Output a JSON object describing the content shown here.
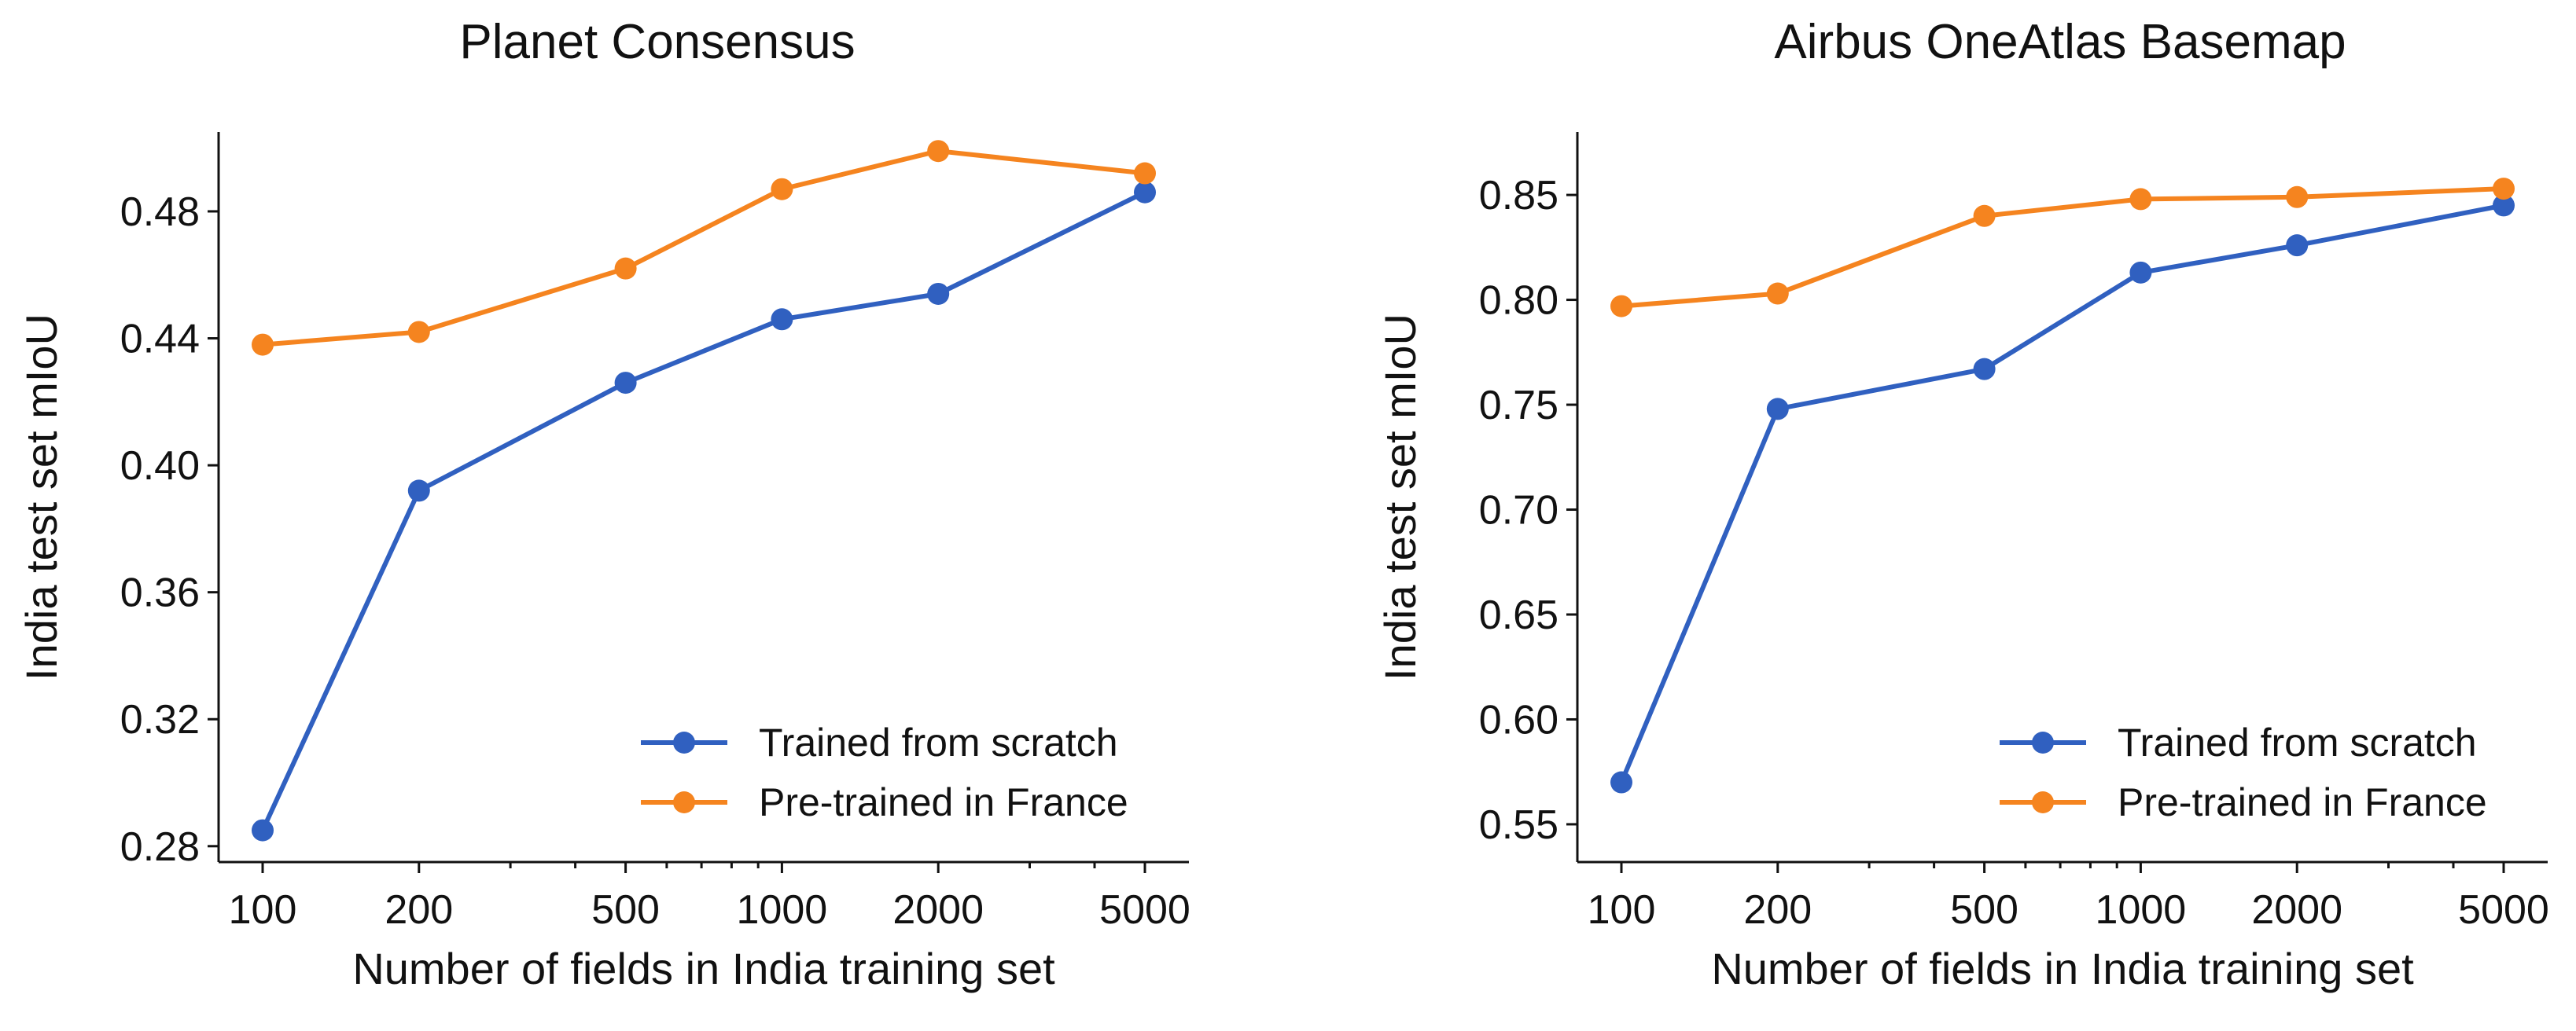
{
  "chart_data": [
    {
      "type": "line",
      "title": "Planet Consensus",
      "xlabel": "Number of fields in India training set",
      "ylabel": "India test set mIoU",
      "xscale": "log",
      "x": [
        100,
        200,
        500,
        1000,
        2000,
        5000
      ],
      "xticks": [
        "100",
        "200",
        "500",
        "1000",
        "2000",
        "5000"
      ],
      "yticks": [
        "0.28",
        "0.32",
        "0.36",
        "0.40",
        "0.44",
        "0.48"
      ],
      "ylim": [
        0.275,
        0.505
      ],
      "legend_position": "lower-right",
      "series": [
        {
          "name": "Trained from scratch",
          "color": "#3060c0",
          "values": [
            0.285,
            0.392,
            0.426,
            0.446,
            0.454,
            0.486
          ]
        },
        {
          "name": "Pre-trained in France",
          "color": "#f5841f",
          "values": [
            0.438,
            0.442,
            0.462,
            0.487,
            0.499,
            0.492
          ]
        }
      ]
    },
    {
      "type": "line",
      "title": "Airbus OneAtlas Basemap",
      "xlabel": "Number of fields in India training set",
      "ylabel": "India test set mIoU",
      "xscale": "log",
      "x": [
        100,
        200,
        500,
        1000,
        2000,
        5000
      ],
      "xticks": [
        "100",
        "200",
        "500",
        "1000",
        "2000",
        "5000"
      ],
      "yticks": [
        "0.55",
        "0.60",
        "0.65",
        "0.70",
        "0.75",
        "0.80",
        "0.85"
      ],
      "ylim": [
        0.532,
        0.88
      ],
      "legend_position": "lower-right",
      "series": [
        {
          "name": "Trained from scratch",
          "color": "#3060c0",
          "values": [
            0.57,
            0.748,
            0.767,
            0.813,
            0.826,
            0.845
          ]
        },
        {
          "name": "Pre-trained in France",
          "color": "#f5841f",
          "values": [
            0.797,
            0.803,
            0.84,
            0.848,
            0.849,
            0.853
          ]
        }
      ]
    }
  ]
}
